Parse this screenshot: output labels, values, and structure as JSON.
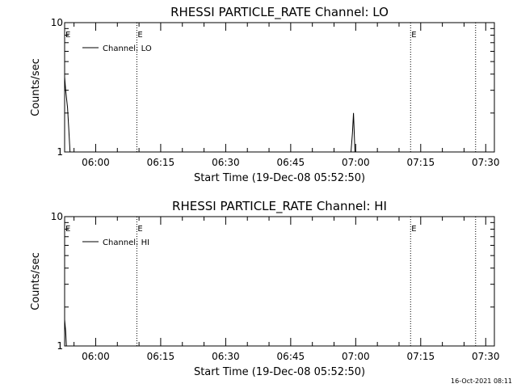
{
  "chart_data": [
    {
      "type": "line",
      "title": "RHESSI PARTICLE_RATE Channel: LO",
      "xlabel": "Start Time (19-Dec-08 05:52:50)",
      "ylabel": "Counts/sec",
      "y_scale": "log",
      "ylim": [
        1,
        10
      ],
      "ytick_labels": [
        "1",
        "10"
      ],
      "xlim": [
        "05:52:50",
        "07:32:00"
      ],
      "xtick_labels": [
        "06:00",
        "06:15",
        "06:30",
        "06:45",
        "07:00",
        "07:15",
        "07:30"
      ],
      "legend": {
        "position": "top-left",
        "entries": [
          "Channel: LO"
        ]
      },
      "event_markers": [
        {
          "time": "06:09:30",
          "label": "E"
        },
        {
          "time": "07:12:40",
          "label": "E"
        },
        {
          "time": "07:27:40",
          "label": ""
        }
      ],
      "series": [
        {
          "name": "Channel: LO",
          "x": [
            "05:52:50",
            "05:53:05",
            "05:53:30",
            "05:53:45",
            "05:54:05",
            "06:58:55",
            "06:59:15",
            "06:59:30",
            "06:59:50"
          ],
          "y": [
            3.8,
            3.0,
            2.2,
            1.6,
            1.0,
            1.0,
            1.4,
            2.0,
            1.0
          ]
        }
      ]
    },
    {
      "type": "line",
      "title": "RHESSI PARTICLE_RATE Channel: HI",
      "xlabel": "Start Time (19-Dec-08 05:52:50)",
      "ylabel": "Counts/sec",
      "y_scale": "log",
      "ylim": [
        1,
        10
      ],
      "ytick_labels": [
        "1",
        "10"
      ],
      "xlim": [
        "05:52:50",
        "07:32:00"
      ],
      "xtick_labels": [
        "06:00",
        "06:15",
        "06:30",
        "06:45",
        "07:00",
        "07:15",
        "07:30"
      ],
      "legend": {
        "position": "top-left",
        "entries": [
          "Channel: HI"
        ]
      },
      "event_markers": [
        {
          "time": "06:09:30",
          "label": "E"
        },
        {
          "time": "07:12:40",
          "label": "E"
        },
        {
          "time": "07:27:40",
          "label": ""
        }
      ],
      "series": [
        {
          "name": "Channel: HI",
          "x": [
            "05:52:50",
            "05:53:05",
            "05:53:15"
          ],
          "y": [
            1.6,
            1.3,
            1.0
          ]
        }
      ]
    }
  ],
  "footer": {
    "timestamp": "16-Oct-2021 08:11"
  }
}
